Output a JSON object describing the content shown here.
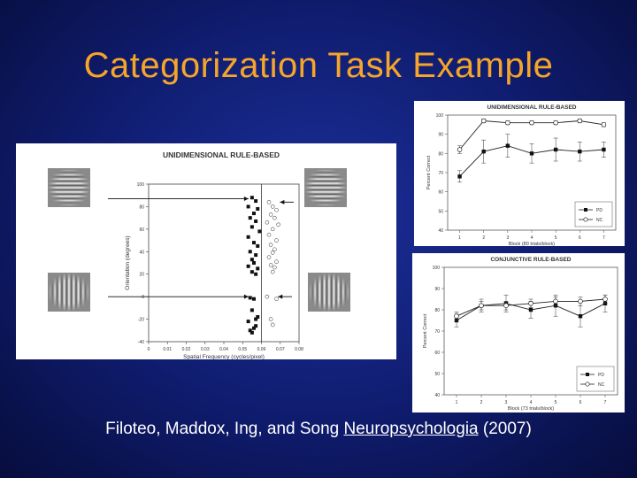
{
  "slide": {
    "title": "Categorization Task Example",
    "citation": {
      "authors": "Filoteo, Maddox, Ing, and Song",
      "journal": "Neuropsychologia",
      "year": "(2007)"
    }
  },
  "main_panel": {
    "title": "UNIDIMENSIONAL RULE-BASED",
    "xlabel": "Spatial Frequency (cycles/pixel)",
    "ylabel": "Orientation (degrees)",
    "xticks": [
      "0",
      "0.01",
      "0.02",
      "0.03",
      "0.04",
      "0.05",
      "0.06",
      "0.07",
      "0.08"
    ],
    "yticks": [
      "100",
      "80",
      "60",
      "40",
      "20",
      "0",
      "-20",
      "-40"
    ],
    "boundary_x": 0.06,
    "stimuli": [
      {
        "name": "horizontal-grating-left",
        "orientation": "horizontal"
      },
      {
        "name": "horizontal-grating-right",
        "orientation": "horizontal"
      },
      {
        "name": "vertical-grating-left",
        "orientation": "vertical"
      },
      {
        "name": "vertical-grating-right",
        "orientation": "vertical"
      }
    ]
  },
  "chart_data": [
    {
      "type": "scatter",
      "title": "UNIDIMENSIONAL RULE-BASED",
      "xlabel": "Spatial Frequency (cycles/pixel)",
      "ylabel": "Orientation (degrees)",
      "xlim": [
        0,
        0.08
      ],
      "ylim": [
        -40,
        100
      ],
      "series": [
        {
          "marker": "filled-square",
          "x": [
            0.055,
            0.057,
            0.053,
            0.058,
            0.056,
            0.054,
            0.057,
            0.055,
            0.059,
            0.053,
            0.056,
            0.058,
            0.054,
            0.057,
            0.055,
            0.056,
            0.053,
            0.058,
            0.055,
            0.057,
            0.054,
            0.056,
            0.055,
            0.058,
            0.053,
            0.057,
            0.056,
            0.054,
            0.055,
            0.057
          ],
          "y": [
            88,
            85,
            80,
            78,
            74,
            70,
            67,
            62,
            58,
            53,
            48,
            45,
            40,
            37,
            33,
            30,
            27,
            25,
            22,
            20,
            -1,
            -2,
            -12,
            -18,
            -22,
            -26,
            -28,
            -30,
            -32,
            -20
          ]
        },
        {
          "marker": "open-circle",
          "x": [
            0.064,
            0.066,
            0.068,
            0.065,
            0.067,
            0.063,
            0.069,
            0.066,
            0.064,
            0.068,
            0.065,
            0.067,
            0.066,
            0.064,
            0.068,
            0.065,
            0.067,
            0.066,
            0.063,
            0.068,
            0.065,
            0.066
          ],
          "y": [
            84,
            80,
            77,
            73,
            70,
            66,
            64,
            60,
            55,
            50,
            46,
            42,
            39,
            35,
            31,
            28,
            26,
            22,
            0,
            -2,
            -20,
            -25
          ]
        }
      ]
    },
    {
      "type": "line",
      "title": "UNIDIMENSIONAL RULE-BASED",
      "xlabel": "Block (80 trials/block)",
      "ylabel": "Percent Correct",
      "categories": [
        "1",
        "2",
        "3",
        "4",
        "5",
        "6",
        "7"
      ],
      "ylim": [
        40,
        100
      ],
      "yticks": [
        "100",
        "90",
        "80",
        "70",
        "60",
        "50",
        "40"
      ],
      "legend": "bottom-right",
      "series": [
        {
          "name": "PD",
          "marker": "filled-square",
          "values": [
            68,
            81,
            84,
            80,
            82,
            81,
            82
          ],
          "error": [
            3,
            6,
            6,
            5,
            6,
            5,
            4
          ]
        },
        {
          "name": "NC",
          "marker": "open-circle",
          "values": [
            82,
            97,
            96,
            96,
            96,
            97,
            95
          ],
          "error": [
            2,
            1,
            1,
            1,
            1,
            1,
            1
          ]
        }
      ]
    },
    {
      "type": "line",
      "title": "CONJUNCTIVE RULE-BASED",
      "xlabel": "Block (73 trials/block)",
      "ylabel": "Percent Correct",
      "categories": [
        "1",
        "2",
        "3",
        "4",
        "5",
        "6",
        "7"
      ],
      "ylim": [
        40,
        100
      ],
      "yticks": [
        "100",
        "90",
        "80",
        "70",
        "60",
        "50",
        "40"
      ],
      "legend": "bottom-right",
      "series": [
        {
          "name": "PD",
          "marker": "filled-square",
          "values": [
            75,
            82,
            83,
            80,
            82,
            77,
            83
          ],
          "error": [
            3,
            3,
            4,
            4,
            5,
            5,
            4
          ]
        },
        {
          "name": "NC",
          "marker": "open-circle",
          "values": [
            77,
            82,
            82,
            83,
            84,
            84,
            85
          ],
          "error": [
            2,
            2,
            2,
            2,
            2,
            2,
            2
          ]
        }
      ]
    }
  ]
}
